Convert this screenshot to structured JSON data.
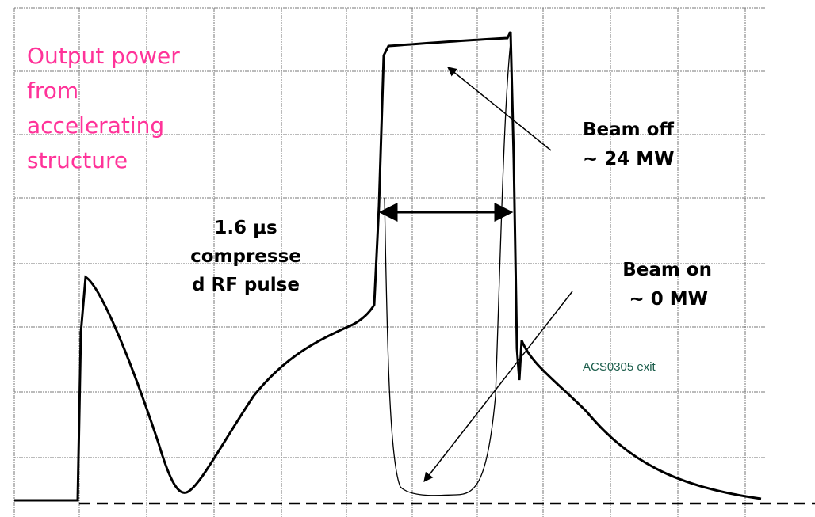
{
  "annotations": {
    "output_power": [
      "Output power",
      "from",
      "accelerating",
      "structure"
    ],
    "pulse": [
      "1.6 μs",
      "compresse",
      "d RF pulse"
    ],
    "beam_off": [
      "Beam off",
      "~ 24 MW"
    ],
    "beam_on": [
      "Beam on",
      "~ 0 MW"
    ],
    "channel": "ACS0305 exit"
  }
}
